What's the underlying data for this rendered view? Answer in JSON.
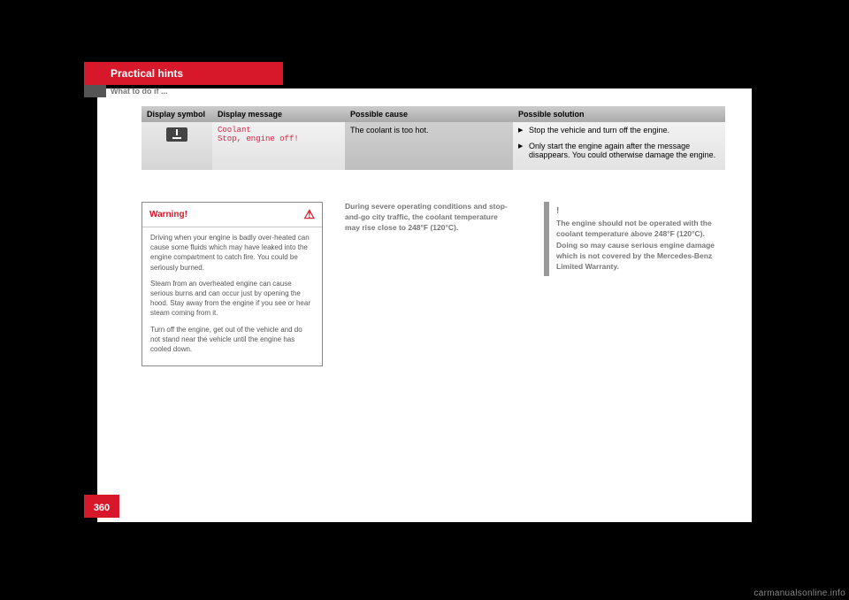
{
  "header": {
    "section": "Practical hints",
    "subsection": "What to do if ..."
  },
  "table": {
    "columns": [
      "Display symbol",
      "Display message",
      "Possible cause",
      "Possible solution"
    ],
    "row": {
      "message_line1": "Coolant",
      "message_line2": "Stop, engine off!",
      "cause": "The coolant is too hot.",
      "solutions": [
        "Stop the vehicle and turn off the engine.",
        "Only start the engine again after the message disappears. You could otherwise damage the engine."
      ]
    }
  },
  "warning": {
    "title": "Warning!",
    "paragraphs": [
      "Driving when your engine is badly over-heated can cause some fluids which may have leaked into the engine compartment to catch fire. You could be seriously burned.",
      "Steam from an overheated engine can cause serious burns and can occur just by opening the hood. Stay away from the engine if you see or hear steam coming from it.",
      "Turn off the engine, get out of the vehicle and do not stand near the vehicle until the engine has cooled down."
    ]
  },
  "mid_note": "During severe operating conditions and stop-and-go city traffic, the coolant temperature may rise close to 248°F (120°C).",
  "right_note": "The engine should not be operated with the coolant temperature above 248°F (120°C). Doing so may cause serious engine damage which is not covered by the Mercedes-Benz Limited Warranty.",
  "page_number": "360",
  "watermark": "carmanualsonline.info"
}
